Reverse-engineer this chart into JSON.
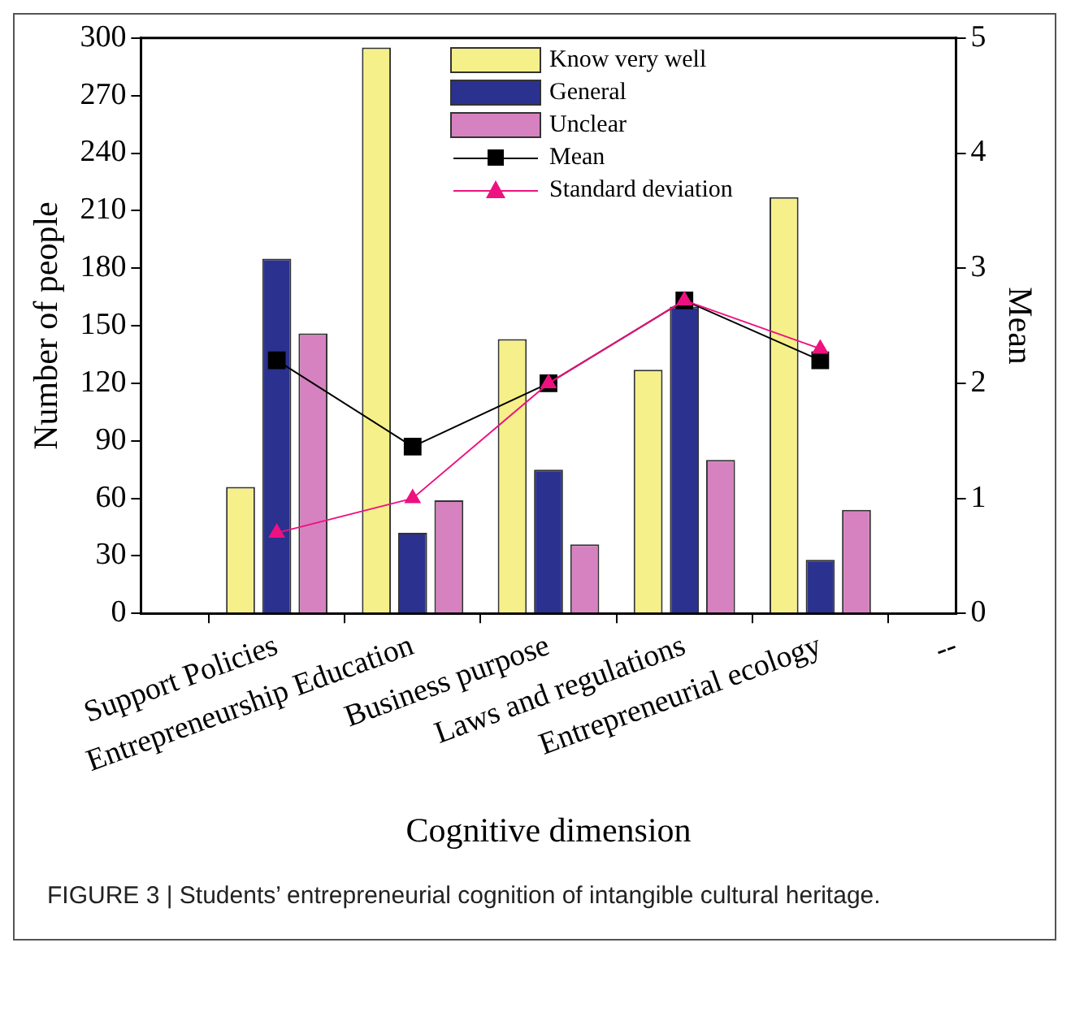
{
  "chart_data": {
    "type": "bar",
    "xlabel": "Cognitive dimension",
    "ylabel": "Number of people",
    "y2label": "Mean",
    "categories": [
      null,
      "Support Policies",
      "Entrepreneurship Education",
      "Business purpose",
      "Laws and regulations",
      "Entrepreneurial ecology",
      "--"
    ],
    "series": [
      {
        "name": "Know very well",
        "color": "#f5f08a",
        "values": [
          null,
          66,
          295,
          143,
          127,
          217,
          null
        ]
      },
      {
        "name": "General",
        "color": "#2b318f",
        "values": [
          null,
          185,
          42,
          75,
          160,
          28,
          null
        ]
      },
      {
        "name": "Unclear",
        "color": "#d682c0",
        "values": [
          null,
          146,
          59,
          36,
          80,
          54,
          null
        ]
      },
      {
        "name": "Mean",
        "type": "line",
        "axis": "y2",
        "marker": "square",
        "color": "#000000",
        "values": [
          null,
          2.2,
          1.45,
          2.0,
          2.72,
          2.2,
          null
        ]
      },
      {
        "name": "Standard deviation",
        "type": "line",
        "axis": "y2",
        "marker": "triangle",
        "color": "#ee1180",
        "values": [
          null,
          0.7,
          1.0,
          2.0,
          2.72,
          2.3,
          null
        ]
      }
    ],
    "ylim": [
      0,
      300
    ],
    "yticks": [
      0,
      30,
      60,
      90,
      120,
      150,
      180,
      210,
      240,
      270,
      300
    ],
    "y2lim": [
      0,
      5
    ],
    "y2ticks": [
      0,
      1,
      2,
      3,
      4,
      5
    ],
    "grid": false,
    "legend": "top right",
    "annotations": [
      "FIGURE 3 | Students’ entrepreneurial cognition of intangible cultural heritage."
    ]
  }
}
